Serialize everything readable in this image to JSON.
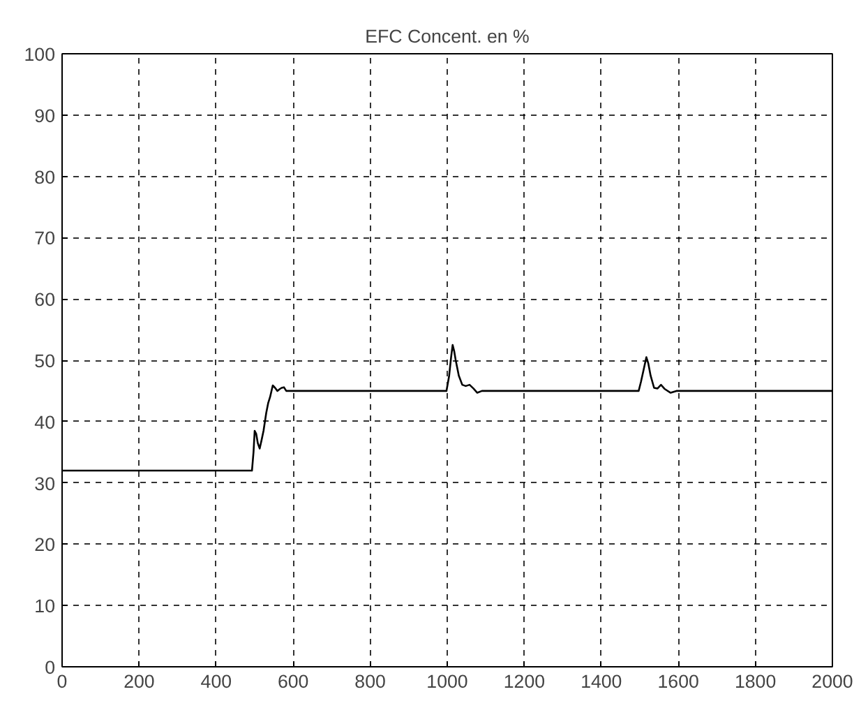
{
  "chart_data": {
    "type": "line",
    "title": "EFC Concent. en %",
    "x": [
      0,
      493,
      497,
      500,
      504,
      508,
      513,
      518,
      523,
      530,
      535,
      540,
      547,
      553,
      559,
      565,
      570,
      576,
      582,
      600,
      998,
      1005,
      1010,
      1014,
      1018,
      1022,
      1030,
      1039,
      1048,
      1058,
      1068,
      1078,
      1090,
      1497,
      1503,
      1510,
      1517,
      1522,
      1528,
      1537,
      1546,
      1555,
      1565,
      1580,
      1595,
      2000
    ],
    "values": [
      32,
      32,
      35,
      38.5,
      38,
      36.5,
      35.6,
      37,
      38.5,
      41.4,
      43,
      44,
      45.9,
      45.5,
      45,
      45.3,
      45.5,
      45.6,
      45,
      45,
      45,
      47.5,
      50.5,
      52.5,
      51.5,
      50,
      47.5,
      46,
      45.8,
      46,
      45.4,
      44.7,
      45,
      45,
      46.5,
      48.5,
      50.5,
      49.5,
      47.5,
      45.5,
      45.4,
      46,
      45.3,
      44.7,
      45,
      45
    ],
    "color": "#000000",
    "xlim": [
      0,
      2000
    ],
    "ylim": [
      0,
      100
    ],
    "xticks": [
      0,
      200,
      400,
      600,
      800,
      1000,
      1200,
      1400,
      1600,
      1800,
      2000
    ],
    "yticks": [
      0,
      10,
      20,
      30,
      40,
      50,
      60,
      70,
      80,
      90,
      100
    ],
    "grid": true
  }
}
